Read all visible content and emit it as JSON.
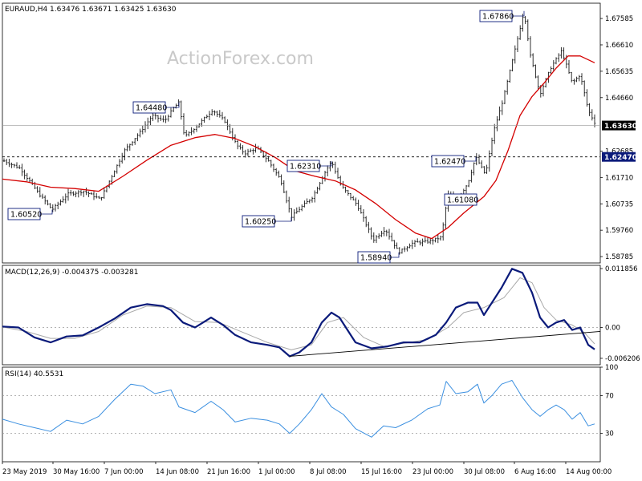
{
  "header": {
    "label": "EURAUD,H4  1.63476 1.63671 1.63425 1.63630"
  },
  "watermark": "ActionForex.com",
  "colors": {
    "price_bars": "#1a1a1a",
    "sma": "#d40000",
    "macd": "#0a1a7a",
    "macd_signal": "#a9a9a9",
    "rsi": "#3a8fe0",
    "trendline": "#000000",
    "current_price_marker": "#000000",
    "support_marker": "#0a1a7a",
    "callout_border": "#0a1a7a"
  },
  "chart_data": [
    {
      "type": "ohlc",
      "panel": "price",
      "title": "EURAUD,H4  1.63476 1.63671 1.63425 1.63630",
      "x_ticks": [
        "23 May 2019",
        "30 May 16:00",
        "7 Jun 00:00",
        "14 Jun 08:00",
        "21 Jun 16:00",
        "1 Jul 00:00",
        "8 Jul 08:00",
        "15 Jul 16:00",
        "23 Jul 00:00",
        "30 Jul 08:00",
        "6 Aug 16:00",
        "14 Aug 00:00"
      ],
      "y_ticks": [
        "1.67585",
        "1.66610",
        "1.65635",
        "1.64660",
        "1.62685",
        "1.61710",
        "1.60735",
        "1.59760",
        "1.58785"
      ],
      "ylim": [
        1.5855,
        1.6815
      ],
      "price_path": [
        [
          0,
          1.6232
        ],
        [
          20,
          1.6205
        ],
        [
          45,
          1.6105
        ],
        [
          60,
          1.6052
        ],
        [
          80,
          1.611
        ],
        [
          100,
          1.612
        ],
        [
          120,
          1.609
        ],
        [
          130,
          1.615
        ],
        [
          150,
          1.627
        ],
        [
          170,
          1.634
        ],
        [
          185,
          1.64
        ],
        [
          200,
          1.638
        ],
        [
          212,
          1.643
        ],
        [
          218,
          1.6448
        ],
        [
          225,
          1.632
        ],
        [
          240,
          1.636
        ],
        [
          260,
          1.642
        ],
        [
          275,
          1.638
        ],
        [
          290,
          1.629
        ],
        [
          300,
          1.626
        ],
        [
          315,
          1.628
        ],
        [
          330,
          1.623
        ],
        [
          345,
          1.616
        ],
        [
          358,
          1.6025
        ],
        [
          370,
          1.606
        ],
        [
          385,
          1.61
        ],
        [
          398,
          1.618
        ],
        [
          408,
          1.6231
        ],
        [
          420,
          1.614
        ],
        [
          440,
          1.607
        ],
        [
          460,
          1.594
        ],
        [
          475,
          1.598
        ],
        [
          492,
          1.5894
        ],
        [
          510,
          1.593
        ],
        [
          530,
          1.5935
        ],
        [
          545,
          1.595
        ],
        [
          553,
          1.6108
        ],
        [
          565,
          1.609
        ],
        [
          578,
          1.615
        ],
        [
          588,
          1.6247
        ],
        [
          600,
          1.618
        ],
        [
          610,
          1.634
        ],
        [
          622,
          1.646
        ],
        [
          635,
          1.662
        ],
        [
          648,
          1.6786
        ],
        [
          656,
          1.662
        ],
        [
          668,
          1.648
        ],
        [
          682,
          1.658
        ],
        [
          695,
          1.664
        ],
        [
          708,
          1.652
        ],
        [
          718,
          1.655
        ],
        [
          728,
          1.642
        ],
        [
          738,
          1.6363
        ]
      ],
      "sma_path": [
        [
          0,
          1.6165
        ],
        [
          30,
          1.6155
        ],
        [
          60,
          1.6135
        ],
        [
          90,
          1.613
        ],
        [
          120,
          1.612
        ],
        [
          150,
          1.6175
        ],
        [
          180,
          1.6235
        ],
        [
          210,
          1.629
        ],
        [
          240,
          1.6318
        ],
        [
          265,
          1.633
        ],
        [
          290,
          1.6315
        ],
        [
          315,
          1.6285
        ],
        [
          340,
          1.6245
        ],
        [
          365,
          1.6195
        ],
        [
          390,
          1.6175
        ],
        [
          415,
          1.6158
        ],
        [
          440,
          1.6125
        ],
        [
          465,
          1.6075
        ],
        [
          490,
          1.6015
        ],
        [
          515,
          1.5965
        ],
        [
          535,
          1.5945
        ],
        [
          555,
          1.5985
        ],
        [
          575,
          1.604
        ],
        [
          600,
          1.61
        ],
        [
          615,
          1.616
        ],
        [
          630,
          1.627
        ],
        [
          645,
          1.64
        ],
        [
          660,
          1.647
        ],
        [
          675,
          1.652
        ],
        [
          690,
          1.6575
        ],
        [
          705,
          1.662
        ],
        [
          720,
          1.662
        ],
        [
          738,
          1.6595
        ]
      ],
      "current_price": "1.63630",
      "support_level": "1.62470",
      "annotations": [
        {
          "label": "1.67860",
          "price": 1.6786,
          "anchor": 648
        },
        {
          "label": "1.64480",
          "price": 1.6448,
          "anchor": 218
        },
        {
          "label": "1.62310",
          "price": 1.6231,
          "anchor": 408
        },
        {
          "label": "1.62470",
          "price": 1.6247,
          "anchor": 588
        },
        {
          "label": "1.61080",
          "price": 1.6108,
          "anchor": 553
        },
        {
          "label": "1.60520",
          "price": 1.6052,
          "anchor": 60
        },
        {
          "label": "1.60250",
          "price": 1.6025,
          "anchor": 358
        },
        {
          "label": "1.58940",
          "price": 1.5894,
          "anchor": 492
        }
      ]
    },
    {
      "type": "line",
      "panel": "macd",
      "title": "MACD(12,26,9) -0.004375 -0.003281",
      "y_ticks": [
        "0.011856",
        "0.00",
        "-0.006206"
      ],
      "ylim": [
        -0.0075,
        0.0125
      ],
      "macd_path": [
        [
          0,
          0.0002
        ],
        [
          20,
          0.0
        ],
        [
          40,
          -0.002
        ],
        [
          60,
          -0.003
        ],
        [
          80,
          -0.0018
        ],
        [
          100,
          -0.0016
        ],
        [
          120,
          0.0
        ],
        [
          140,
          0.0018
        ],
        [
          160,
          0.004
        ],
        [
          180,
          0.0047
        ],
        [
          200,
          0.0043
        ],
        [
          210,
          0.0035
        ],
        [
          225,
          0.001
        ],
        [
          240,
          0.0
        ],
        [
          260,
          0.002
        ],
        [
          275,
          0.0005
        ],
        [
          290,
          -0.0015
        ],
        [
          310,
          -0.003
        ],
        [
          330,
          -0.0035
        ],
        [
          345,
          -0.004
        ],
        [
          358,
          -0.0058
        ],
        [
          370,
          -0.005
        ],
        [
          385,
          -0.003
        ],
        [
          398,
          0.001
        ],
        [
          410,
          0.003
        ],
        [
          420,
          0.002
        ],
        [
          440,
          -0.003
        ],
        [
          460,
          -0.0042
        ],
        [
          480,
          -0.0038
        ],
        [
          500,
          -0.003
        ],
        [
          520,
          -0.003
        ],
        [
          540,
          -0.0015
        ],
        [
          553,
          0.001
        ],
        [
          565,
          0.004
        ],
        [
          580,
          0.005
        ],
        [
          592,
          0.005
        ],
        [
          600,
          0.0025
        ],
        [
          610,
          0.005
        ],
        [
          622,
          0.008
        ],
        [
          635,
          0.0118
        ],
        [
          648,
          0.011
        ],
        [
          660,
          0.007
        ],
        [
          670,
          0.002
        ],
        [
          680,
          0.0
        ],
        [
          690,
          0.001
        ],
        [
          700,
          0.0015
        ],
        [
          710,
          -0.0005
        ],
        [
          720,
          0.0
        ],
        [
          730,
          -0.0035
        ],
        [
          738,
          -0.0044
        ]
      ],
      "signal_path": [
        [
          0,
          0.0001
        ],
        [
          30,
          -0.0008
        ],
        [
          60,
          -0.0022
        ],
        [
          90,
          -0.0022
        ],
        [
          120,
          -0.0008
        ],
        [
          150,
          0.0025
        ],
        [
          180,
          0.0043
        ],
        [
          210,
          0.004
        ],
        [
          240,
          0.0012
        ],
        [
          270,
          0.001
        ],
        [
          300,
          -0.001
        ],
        [
          330,
          -0.003
        ],
        [
          360,
          -0.0045
        ],
        [
          385,
          -0.0035
        ],
        [
          405,
          0.001
        ],
        [
          425,
          0.002
        ],
        [
          450,
          -0.002
        ],
        [
          475,
          -0.0038
        ],
        [
          500,
          -0.0032
        ],
        [
          530,
          -0.0024
        ],
        [
          555,
          0.0
        ],
        [
          575,
          0.003
        ],
        [
          600,
          0.004
        ],
        [
          625,
          0.006
        ],
        [
          645,
          0.01
        ],
        [
          660,
          0.009
        ],
        [
          675,
          0.004
        ],
        [
          690,
          0.0015
        ],
        [
          710,
          0.0005
        ],
        [
          725,
          -0.001
        ],
        [
          738,
          -0.0033
        ]
      ],
      "trendline": [
        [
          358,
          -0.0058
        ],
        [
          748,
          -0.0008
        ]
      ]
    },
    {
      "type": "line",
      "panel": "rsi",
      "title": "RSI(14) 40.5531",
      "y_ticks": [
        "100",
        "70",
        "30"
      ],
      "ylim": [
        0,
        100
      ],
      "levels": [
        70,
        30
      ],
      "rsi_path": [
        [
          0,
          45
        ],
        [
          20,
          40
        ],
        [
          40,
          36
        ],
        [
          60,
          32
        ],
        [
          80,
          44
        ],
        [
          100,
          40
        ],
        [
          120,
          48
        ],
        [
          140,
          66
        ],
        [
          160,
          82
        ],
        [
          175,
          80
        ],
        [
          190,
          72
        ],
        [
          210,
          76
        ],
        [
          220,
          58
        ],
        [
          240,
          52
        ],
        [
          260,
          64
        ],
        [
          275,
          55
        ],
        [
          290,
          42
        ],
        [
          310,
          46
        ],
        [
          330,
          44
        ],
        [
          345,
          40
        ],
        [
          358,
          30
        ],
        [
          370,
          40
        ],
        [
          385,
          55
        ],
        [
          398,
          72
        ],
        [
          410,
          58
        ],
        [
          425,
          50
        ],
        [
          440,
          35
        ],
        [
          460,
          26
        ],
        [
          475,
          38
        ],
        [
          490,
          36
        ],
        [
          510,
          44
        ],
        [
          530,
          56
        ],
        [
          545,
          60
        ],
        [
          553,
          85
        ],
        [
          565,
          72
        ],
        [
          580,
          74
        ],
        [
          592,
          82
        ],
        [
          600,
          62
        ],
        [
          610,
          70
        ],
        [
          622,
          82
        ],
        [
          635,
          86
        ],
        [
          648,
          68
        ],
        [
          660,
          55
        ],
        [
          670,
          48
        ],
        [
          680,
          55
        ],
        [
          690,
          60
        ],
        [
          700,
          55
        ],
        [
          710,
          45
        ],
        [
          720,
          52
        ],
        [
          730,
          38
        ],
        [
          738,
          40
        ]
      ]
    }
  ]
}
